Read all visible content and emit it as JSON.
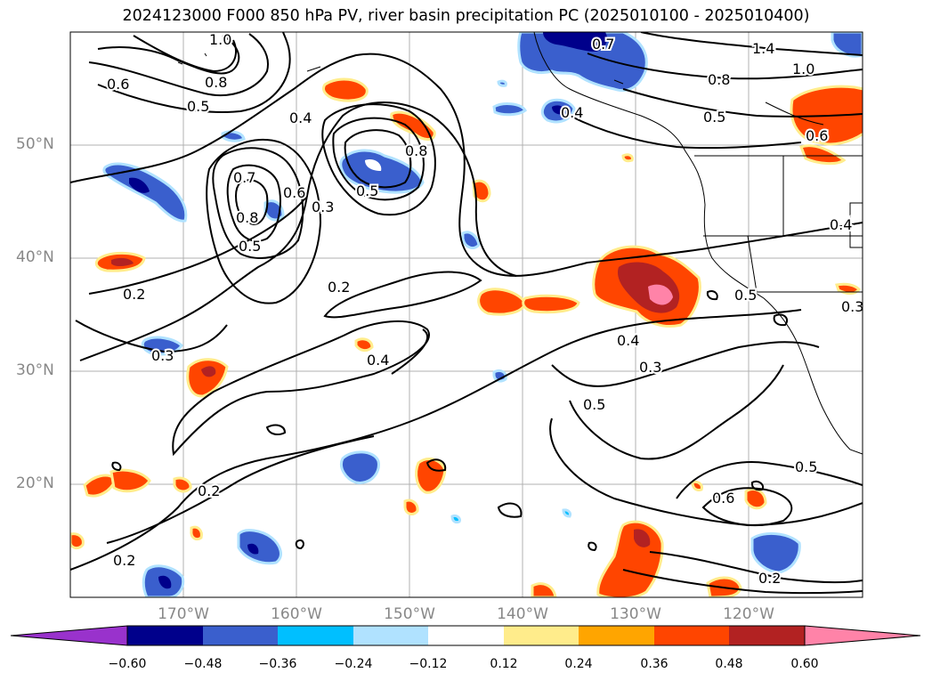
{
  "title": "2024123000 F000 850 hPa PV, river basin precipitation PC (2025010100 - 2025010400)",
  "map": {
    "projection": "PlateCarree",
    "lon_range": [
      -180,
      -110
    ],
    "lat_range": [
      10,
      60
    ],
    "grid": true,
    "lat_ticks": [
      {
        "value": 50,
        "label": "50°N"
      },
      {
        "value": 40,
        "label": "40°N"
      },
      {
        "value": 30,
        "label": "30°N"
      },
      {
        "value": 20,
        "label": "20°N"
      }
    ],
    "lon_ticks": [
      {
        "value": -170,
        "label": "170°W"
      },
      {
        "value": -160,
        "label": "160°W"
      },
      {
        "value": -150,
        "label": "150°W"
      },
      {
        "value": -140,
        "label": "140°W"
      },
      {
        "value": -130,
        "label": "130°W"
      },
      {
        "value": -120,
        "label": "120°W"
      }
    ],
    "contour_labels": [
      "1.0",
      "0.6",
      "0.8",
      "0.5",
      "0.4",
      "0.7",
      "0.6",
      "0.8",
      "0.5",
      "0.3",
      "0.8",
      "0.5",
      "0.7",
      "0.4",
      "1.4",
      "1.0",
      "0.8",
      "0.5",
      "0.6",
      "0.4",
      "0.2",
      "0.2",
      "0.3",
      "0.4",
      "0.4",
      "0.3",
      "0.5",
      "0.5",
      "0.3",
      "0.5",
      "0.6",
      "0.2",
      "0.2",
      "0.2"
    ]
  },
  "colorbar": {
    "extend": "both",
    "colors": [
      "#9932cc",
      "#00008b",
      "#3a5fcd",
      "#00bfff",
      "#b0e2ff",
      "#ffffff",
      "#ffec8b",
      "#ffa500",
      "#ff4500",
      "#b22222",
      "#ff83a8"
    ],
    "tick_labels": [
      "−0.60",
      "−0.48",
      "−0.36",
      "−0.24",
      "−0.12",
      "0.12",
      "0.24",
      "0.36",
      "0.48",
      "0.60"
    ]
  }
}
